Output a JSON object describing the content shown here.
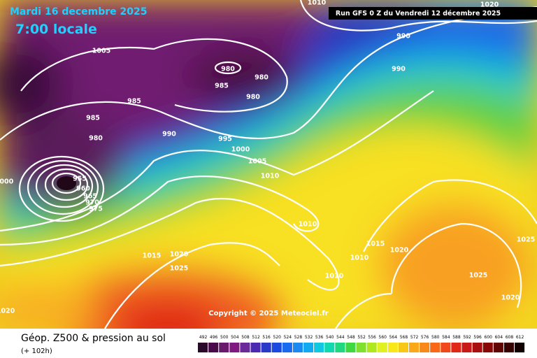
{
  "header": {
    "title": "Mardi 16 decembre 2025",
    "time": "7:00 locale",
    "run": "Run GFS 0 Z du Vendredi 12 décembre 2025"
  },
  "isobar_labels": [
    "1005",
    "980",
    "980",
    "985",
    "980",
    "985",
    "985",
    "980",
    "990",
    "995",
    "1000",
    "1005",
    "1010",
    "955",
    "960",
    "965",
    "970",
    "975",
    "1000",
    "990",
    "990",
    "1010",
    "1015",
    "1020",
    "1025",
    "1010",
    "1015",
    "1020",
    "1010",
    "1025",
    "1025",
    "1020",
    "1020",
    "1010",
    "1020"
  ],
  "copyright": "Copyright © 2025 Meteociel.fr",
  "footer": {
    "title": "Géop. Z500 & pression au sol",
    "lead": "(+ 102h)"
  },
  "scale": {
    "values": [
      492,
      496,
      500,
      504,
      508,
      512,
      516,
      520,
      524,
      528,
      532,
      536,
      540,
      544,
      548,
      552,
      556,
      560,
      564,
      568,
      572,
      576,
      580,
      584,
      588,
      592,
      596,
      600,
      604,
      608,
      612
    ],
    "colors": [
      "#2a0a2a",
      "#4a0a4a",
      "#6a1a6a",
      "#801a80",
      "#6a2a9a",
      "#4a2ab0",
      "#2a3ac8",
      "#1a4ae0",
      "#1a6af0",
      "#1a8af0",
      "#10aaf0",
      "#10c8e0",
      "#10d8b0",
      "#20d880",
      "#40d840",
      "#80e030",
      "#b0e820",
      "#e0f020",
      "#f8e818",
      "#f8c818",
      "#f8a818",
      "#f88818",
      "#f86818",
      "#f04818",
      "#e02818",
      "#c81818",
      "#a81010",
      "#880808",
      "#600404",
      "#380202",
      "#100000"
    ]
  }
}
